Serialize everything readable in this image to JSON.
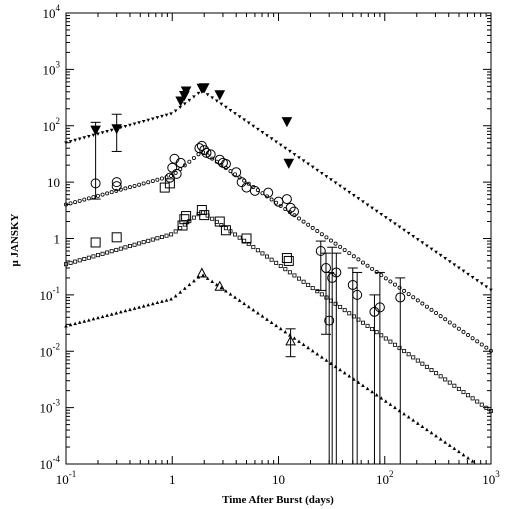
{
  "chart_data": {
    "type": "scatter",
    "xlabel": "Time After Burst (days)",
    "ylabel": "μ JANSKY",
    "x_scale": "log",
    "y_scale": "log",
    "xlim": [
      0.1,
      1000
    ],
    "ylim": [
      0.0001,
      10000
    ],
    "grid": false,
    "x_ticks": [
      {
        "value": 0.1,
        "base": "10",
        "exp": "-1"
      },
      {
        "value": 1,
        "base": "1",
        "exp": ""
      },
      {
        "value": 10,
        "base": "10",
        "exp": ""
      },
      {
        "value": 100,
        "base": "10",
        "exp": "2"
      },
      {
        "value": 1000,
        "base": "10",
        "exp": "3"
      }
    ],
    "y_ticks": [
      {
        "value": 0.0001,
        "base": "10",
        "exp": "-4"
      },
      {
        "value": 0.001,
        "base": "10",
        "exp": "-3"
      },
      {
        "value": 0.01,
        "base": "10",
        "exp": "-2"
      },
      {
        "value": 0.1,
        "base": "10",
        "exp": "-1"
      },
      {
        "value": 1,
        "base": "1",
        "exp": ""
      },
      {
        "value": 10,
        "base": "10",
        "exp": ""
      },
      {
        "value": 100,
        "base": "10",
        "exp": "2"
      },
      {
        "value": 1000,
        "base": "10",
        "exp": "3"
      },
      {
        "value": 10000,
        "base": "10",
        "exp": "4"
      }
    ],
    "series": [
      {
        "marker": "triangle-down-filled",
        "model": {
          "t_break": 1.0,
          "f_before": [
            [
              0.1,
              50
            ],
            [
              1.0,
              165
            ]
          ],
          "peak": [
            1.9,
            420
          ],
          "decay_slope": -1.3,
          "t_end": 1000
        },
        "points": [
          {
            "x": 0.19,
            "y": 85,
            "lo": 5,
            "hi": 115
          },
          {
            "x": 0.3,
            "y": 90,
            "lo": 35,
            "hi": 160
          },
          {
            "x": 1.2,
            "y": 280
          },
          {
            "x": 1.3,
            "y": 350
          },
          {
            "x": 1.35,
            "y": 420
          },
          {
            "x": 1.9,
            "y": 470
          },
          {
            "x": 2.0,
            "y": 480
          },
          {
            "x": 2.8,
            "y": 360
          },
          {
            "x": 12,
            "y": 120
          },
          {
            "x": 12.5,
            "y": 22
          }
        ]
      },
      {
        "marker": "circle-open",
        "model": {
          "t_break": 1.0,
          "f_before": [
            [
              0.1,
              4
            ],
            [
              1.0,
              13
            ]
          ],
          "peak": [
            1.9,
            35
          ],
          "decay_slope": -1.3,
          "t_end": 1000
        },
        "points": [
          {
            "x": 0.19,
            "y": 9.5
          },
          {
            "x": 0.3,
            "y": 10
          },
          {
            "x": 0.3,
            "y": 8.5
          },
          {
            "x": 0.95,
            "y": 12
          },
          {
            "x": 1.0,
            "y": 18
          },
          {
            "x": 1.05,
            "y": 26
          },
          {
            "x": 1.1,
            "y": 14
          },
          {
            "x": 1.2,
            "y": 22
          },
          {
            "x": 1.8,
            "y": 40
          },
          {
            "x": 1.9,
            "y": 44
          },
          {
            "x": 2.0,
            "y": 37
          },
          {
            "x": 2.1,
            "y": 33
          },
          {
            "x": 2.3,
            "y": 31
          },
          {
            "x": 2.8,
            "y": 25
          },
          {
            "x": 3.0,
            "y": 22
          },
          {
            "x": 3.2,
            "y": 21
          },
          {
            "x": 4.0,
            "y": 15
          },
          {
            "x": 4.5,
            "y": 10
          },
          {
            "x": 5.0,
            "y": 8
          },
          {
            "x": 6.0,
            "y": 7
          },
          {
            "x": 8.0,
            "y": 6.5
          },
          {
            "x": 10,
            "y": 4.5
          },
          {
            "x": 12,
            "y": 5
          },
          {
            "x": 13,
            "y": 3.5
          },
          {
            "x": 14,
            "y": 3
          },
          {
            "x": 25,
            "y": 0.6,
            "lo": 0.12,
            "hi": 0.9
          },
          {
            "x": 28,
            "y": 0.3,
            "lo": 0.02,
            "hi": 0.55
          },
          {
            "x": 30,
            "y": 0.035,
            "lo": 0.0001,
            "hi": 0.25
          },
          {
            "x": 32,
            "y": 0.2,
            "lo": 0.0001,
            "hi": 0.7
          },
          {
            "x": 35,
            "y": 0.25,
            "lo": 0.0001,
            "hi": 0.55
          },
          {
            "x": 50,
            "y": 0.15,
            "lo": 0.0001,
            "hi": 0.3
          },
          {
            "x": 55,
            "y": 0.1,
            "lo": 0.0001,
            "hi": 0.25
          },
          {
            "x": 80,
            "y": 0.05,
            "lo": 0.0001,
            "hi": 0.1
          },
          {
            "x": 90,
            "y": 0.06,
            "lo": 0.0001,
            "hi": 0.25
          },
          {
            "x": 140,
            "y": 0.09,
            "lo": 0.0001,
            "hi": 0.2
          }
        ]
      },
      {
        "marker": "square-open",
        "model": {
          "t_break": 1.0,
          "f_before": [
            [
              0.1,
              0.35
            ],
            [
              1.0,
              1.2
            ]
          ],
          "peak": [
            1.9,
            3.0
          ],
          "decay_slope": -1.3,
          "t_end": 1000
        },
        "points": [
          {
            "x": 0.19,
            "y": 0.85
          },
          {
            "x": 0.3,
            "y": 1.05
          },
          {
            "x": 0.85,
            "y": 8
          },
          {
            "x": 0.95,
            "y": 9.5
          },
          {
            "x": 1.25,
            "y": 1.7
          },
          {
            "x": 1.3,
            "y": 2.2
          },
          {
            "x": 1.35,
            "y": 2.5
          },
          {
            "x": 1.9,
            "y": 3.2
          },
          {
            "x": 2.0,
            "y": 2.6
          },
          {
            "x": 2.8,
            "y": 2.0
          },
          {
            "x": 3.2,
            "y": 1.4
          },
          {
            "x": 5.0,
            "y": 1.0
          },
          {
            "x": 12,
            "y": 0.45
          },
          {
            "x": 12.5,
            "y": 0.4
          }
        ]
      },
      {
        "marker": "triangle-up-open",
        "model": {
          "t_break": 1.0,
          "f_before": [
            [
              0.1,
              0.028
            ],
            [
              1.0,
              0.085
            ]
          ],
          "peak": [
            1.9,
            0.23
          ],
          "decay_slope": -1.3,
          "t_end": 1000
        },
        "points": [
          {
            "x": 1.9,
            "y": 0.24
          },
          {
            "x": 2.8,
            "y": 0.14
          },
          {
            "x": 13,
            "y": 0.015,
            "lo": 0.008,
            "hi": 0.025
          }
        ]
      }
    ]
  }
}
